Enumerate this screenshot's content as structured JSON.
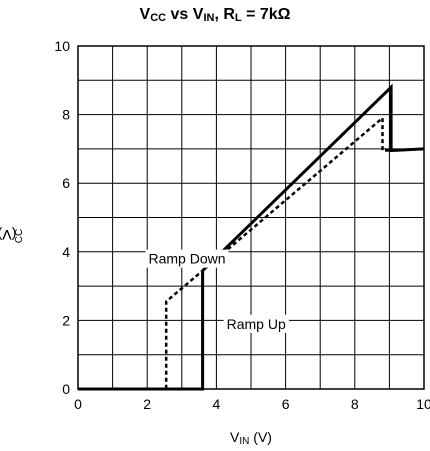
{
  "chart_data": {
    "type": "line",
    "title": {
      "v": "V",
      "v_sub": "CC",
      "mid": " vs V",
      "in_sub": "IN",
      "rest": ", R",
      "l_sub": "L",
      "tail": " = 7kΩ"
    },
    "xlabel": {
      "v": "V",
      "sub": "IN",
      "unit": " (V)"
    },
    "ylabel": {
      "v": "V",
      "sub": "CC",
      "unit": " (V)"
    },
    "xlim": [
      0,
      10
    ],
    "ylim": [
      0,
      10
    ],
    "x_ticks": [
      "0",
      "2",
      "4",
      "6",
      "8",
      "10"
    ],
    "y_ticks": [
      "0",
      "2",
      "4",
      "6",
      "8",
      "10"
    ],
    "grid": true,
    "series": [
      {
        "name": "Ramp Up",
        "style": "solid",
        "points": [
          [
            0,
            0
          ],
          [
            3.6,
            0
          ],
          [
            3.6,
            3.45
          ],
          [
            9.05,
            8.8
          ],
          [
            9.05,
            6.95
          ],
          [
            10,
            7.0
          ]
        ]
      },
      {
        "name": "Ramp Down",
        "style": "dashed",
        "points": [
          [
            10,
            7.0
          ],
          [
            8.8,
            6.95
          ],
          [
            8.8,
            7.9
          ],
          [
            3.6,
            3.45
          ],
          [
            2.55,
            2.55
          ],
          [
            2.55,
            0
          ],
          [
            0,
            0
          ]
        ]
      }
    ],
    "annotations": [
      {
        "text": "Ramp Down",
        "x": 3.15,
        "y": 3.8
      },
      {
        "text": "Ramp Up",
        "x": 5.15,
        "y": 1.9
      }
    ]
  }
}
